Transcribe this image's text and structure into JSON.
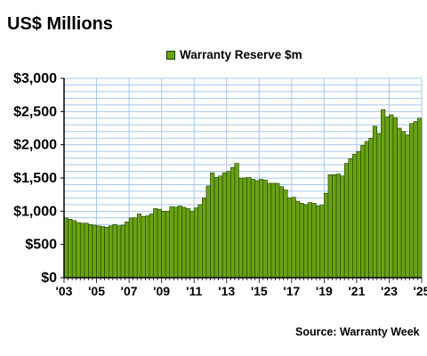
{
  "header": {
    "title": "US$ Millions"
  },
  "footer": {
    "source": "Source: Warranty Week"
  },
  "chart_data": {
    "type": "bar",
    "title": "",
    "xlabel": "",
    "ylabel": "",
    "ylim": [
      0,
      3000
    ],
    "yticks": [
      0,
      500,
      1000,
      1500,
      2000,
      2500,
      3000
    ],
    "ytick_labels": [
      "$0",
      "$500",
      "$1,000",
      "$1,500",
      "$2,000",
      "$2,500",
      "$3,000"
    ],
    "xtick_labels": [
      "'03",
      "'05",
      "'07",
      "'09",
      "'11",
      "'13",
      "'15",
      "'17",
      "'19",
      "'21",
      "'23",
      "'25"
    ],
    "xtick_bar_index": [
      0,
      8,
      16,
      24,
      32,
      40,
      48,
      56,
      64,
      72,
      80,
      88
    ],
    "legend": "top-center",
    "grid": true,
    "bar_color": "#6aa312",
    "bar_edge_color": "#1c3d00",
    "grid_color": "#a6c8ec",
    "series": [
      {
        "name": "Warranty Reserve $m",
        "values": [
          900,
          880,
          860,
          830,
          820,
          820,
          800,
          790,
          780,
          770,
          760,
          780,
          800,
          780,
          790,
          840,
          900,
          900,
          960,
          920,
          930,
          960,
          1040,
          1030,
          1000,
          1000,
          1070,
          1060,
          1080,
          1060,
          1040,
          1000,
          1050,
          1100,
          1200,
          1380,
          1580,
          1510,
          1530,
          1580,
          1600,
          1660,
          1720,
          1500,
          1500,
          1510,
          1480,
          1460,
          1480,
          1470,
          1420,
          1420,
          1420,
          1370,
          1320,
          1200,
          1210,
          1150,
          1120,
          1100,
          1130,
          1120,
          1080,
          1090,
          1270,
          1550,
          1550,
          1560,
          1530,
          1720,
          1790,
          1860,
          1900,
          1990,
          2050,
          2100,
          2280,
          2170,
          2530,
          2420,
          2450,
          2410,
          2250,
          2200,
          2150,
          2320,
          2350,
          2400
        ]
      }
    ]
  }
}
